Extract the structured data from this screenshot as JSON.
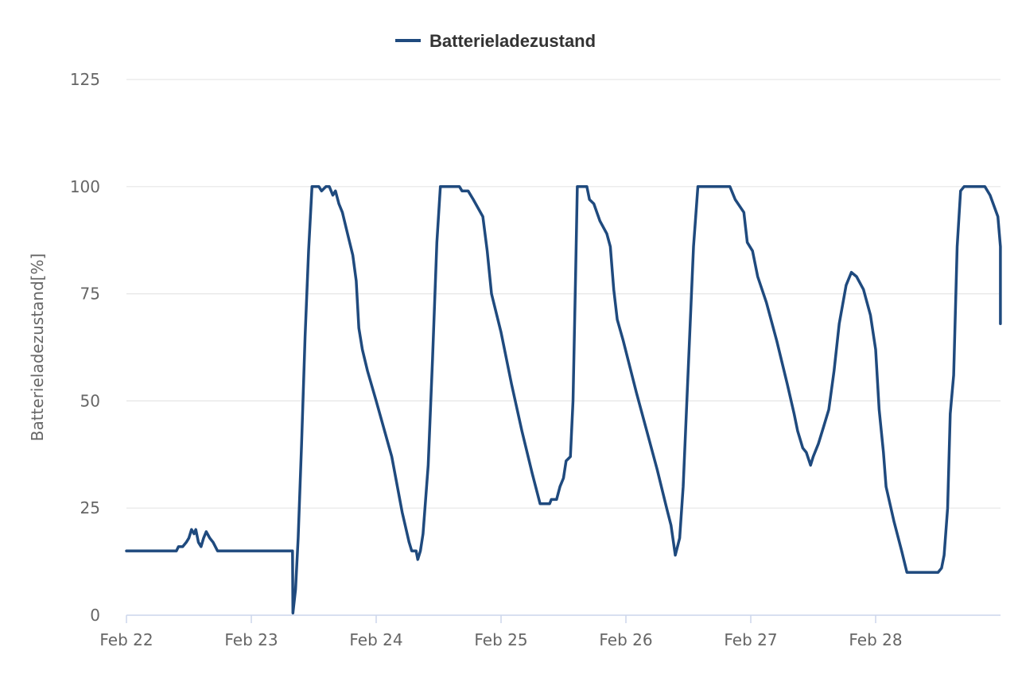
{
  "chart_data": {
    "type": "line",
    "title": "",
    "ylabel": "Batterieladezustand[%]",
    "xlabel": "",
    "ylim": [
      0,
      125
    ],
    "y_ticks": [
      0,
      25,
      50,
      75,
      100,
      125
    ],
    "x_range": [
      "Feb 22",
      "Feb 28 23:59"
    ],
    "x_tick_labels": [
      "Feb 22",
      "Feb 23",
      "Feb 24",
      "Feb 25",
      "Feb 26",
      "Feb 27",
      "Feb 28"
    ],
    "grid": "horizontal",
    "legend": "top-center",
    "colors": {
      "series": "#1f4a7e",
      "grid": "#e6e6e6",
      "axis": "#ccd6eb",
      "text": "#666666"
    },
    "series": [
      {
        "name": "Batterieladezustand",
        "color": "#1f4a7e",
        "points": [
          [
            "Feb 22 00:00",
            15
          ],
          [
            "Feb 22 09:36",
            15
          ],
          [
            "Feb 22 10:00",
            16
          ],
          [
            "Feb 22 10:48",
            16
          ],
          [
            "Feb 22 11:30",
            17
          ],
          [
            "Feb 22 12:00",
            18
          ],
          [
            "Feb 22 12:30",
            20
          ],
          [
            "Feb 22 13:00",
            19
          ],
          [
            "Feb 22 13:20",
            20
          ],
          [
            "Feb 22 13:50",
            17
          ],
          [
            "Feb 22 14:20",
            16
          ],
          [
            "Feb 22 14:50",
            18
          ],
          [
            "Feb 22 15:20",
            19.5
          ],
          [
            "Feb 22 16:00",
            18
          ],
          [
            "Feb 22 16:40",
            17
          ],
          [
            "Feb 22 17:30",
            15
          ],
          [
            "Feb 23 07:55",
            15
          ],
          [
            "Feb 23 08:00",
            0.5
          ],
          [
            "Feb 23 08:30",
            6
          ],
          [
            "Feb 23 09:00",
            18
          ],
          [
            "Feb 23 09:40",
            40
          ],
          [
            "Feb 23 10:20",
            65
          ],
          [
            "Feb 23 11:00",
            85
          ],
          [
            "Feb 23 11:40",
            100
          ],
          [
            "Feb 23 13:00",
            100
          ],
          [
            "Feb 23 13:30",
            99
          ],
          [
            "Feb 23 14:20",
            100
          ],
          [
            "Feb 23 15:00",
            100
          ],
          [
            "Feb 23 15:40",
            98
          ],
          [
            "Feb 23 16:10",
            99
          ],
          [
            "Feb 23 16:50",
            96
          ],
          [
            "Feb 23 17:30",
            94
          ],
          [
            "Feb 23 18:30",
            89
          ],
          [
            "Feb 23 19:30",
            84
          ],
          [
            "Feb 23 20:10",
            78
          ],
          [
            "Feb 23 20:40",
            67
          ],
          [
            "Feb 23 21:20",
            62
          ],
          [
            "Feb 23 22:20",
            57
          ],
          [
            "Feb 24 00:00",
            50
          ],
          [
            "Feb 24 03:00",
            37
          ],
          [
            "Feb 24 05:00",
            24
          ],
          [
            "Feb 24 06:20",
            17
          ],
          [
            "Feb 24 06:50",
            15
          ],
          [
            "Feb 24 07:40",
            15
          ],
          [
            "Feb 24 08:00",
            13
          ],
          [
            "Feb 24 08:30",
            15
          ],
          [
            "Feb 24 09:00",
            19
          ],
          [
            "Feb 24 10:00",
            35
          ],
          [
            "Feb 24 10:50",
            60
          ],
          [
            "Feb 24 11:40",
            87
          ],
          [
            "Feb 24 12:20",
            100
          ],
          [
            "Feb 24 16:00",
            100
          ],
          [
            "Feb 24 16:30",
            99
          ],
          [
            "Feb 24 17:40",
            99
          ],
          [
            "Feb 24 18:40",
            97
          ],
          [
            "Feb 24 20:30",
            93
          ],
          [
            "Feb 24 21:20",
            85
          ],
          [
            "Feb 24 22:10",
            75
          ],
          [
            "Feb 25 00:00",
            66
          ],
          [
            "Feb 25 02:00",
            54
          ],
          [
            "Feb 25 04:00",
            43
          ],
          [
            "Feb 25 06:00",
            33
          ],
          [
            "Feb 25 07:30",
            26
          ],
          [
            "Feb 25 09:20",
            26
          ],
          [
            "Feb 25 09:40",
            27
          ],
          [
            "Feb 25 10:40",
            27
          ],
          [
            "Feb 25 11:20",
            30
          ],
          [
            "Feb 25 12:00",
            32
          ],
          [
            "Feb 25 12:30",
            36
          ],
          [
            "Feb 25 13:20",
            37
          ],
          [
            "Feb 25 13:50",
            50
          ],
          [
            "Feb 25 14:20",
            80
          ],
          [
            "Feb 25 14:40",
            100
          ],
          [
            "Feb 25 16:30",
            100
          ],
          [
            "Feb 25 17:00",
            97
          ],
          [
            "Feb 25 17:50",
            96
          ],
          [
            "Feb 25 19:00",
            92
          ],
          [
            "Feb 25 20:20",
            89
          ],
          [
            "Feb 25 21:00",
            86
          ],
          [
            "Feb 25 21:40",
            76
          ],
          [
            "Feb 25 22:20",
            69
          ],
          [
            "Feb 25 23:30",
            64
          ],
          [
            "Feb 26 02:00",
            52
          ],
          [
            "Feb 26 04:00",
            43
          ],
          [
            "Feb 26 06:00",
            34
          ],
          [
            "Feb 26 07:50",
            25
          ],
          [
            "Feb 26 08:40",
            21
          ],
          [
            "Feb 26 09:30",
            14
          ],
          [
            "Feb 26 10:20",
            18
          ],
          [
            "Feb 26 11:00",
            30
          ],
          [
            "Feb 26 12:00",
            58
          ],
          [
            "Feb 26 13:00",
            86
          ],
          [
            "Feb 26 13:50",
            100
          ],
          [
            "Feb 26 15:00",
            100
          ],
          [
            "Feb 26 20:00",
            100
          ],
          [
            "Feb 26 21:00",
            97
          ],
          [
            "Feb 26 22:40",
            94
          ],
          [
            "Feb 26 23:20",
            87
          ],
          [
            "Feb 27 00:20",
            85
          ],
          [
            "Feb 27 01:20",
            79
          ],
          [
            "Feb 27 03:00",
            73
          ],
          [
            "Feb 27 05:00",
            64
          ],
          [
            "Feb 27 07:00",
            54
          ],
          [
            "Feb 27 08:20",
            47
          ],
          [
            "Feb 27 09:00",
            43
          ],
          [
            "Feb 27 10:00",
            39
          ],
          [
            "Feb 27 10:40",
            38
          ],
          [
            "Feb 27 11:30",
            35
          ],
          [
            "Feb 27 12:00",
            37
          ],
          [
            "Feb 27 13:00",
            40
          ],
          [
            "Feb 27 14:00",
            44
          ],
          [
            "Feb 27 15:00",
            48
          ],
          [
            "Feb 27 16:00",
            57
          ],
          [
            "Feb 27 17:00",
            68
          ],
          [
            "Feb 27 18:20",
            77
          ],
          [
            "Feb 27 19:20",
            80
          ],
          [
            "Feb 27 20:20",
            79
          ],
          [
            "Feb 27 21:40",
            76
          ],
          [
            "Feb 27 23:00",
            70
          ],
          [
            "Feb 28 00:00",
            62
          ],
          [
            "Feb 28 00:40",
            48
          ],
          [
            "Feb 28 01:30",
            38
          ],
          [
            "Feb 28 02:00",
            30
          ],
          [
            "Feb 28 03:30",
            22
          ],
          [
            "Feb 28 05:00",
            15
          ],
          [
            "Feb 28 06:00",
            10
          ],
          [
            "Feb 28 12:00",
            10
          ],
          [
            "Feb 28 12:40",
            11
          ],
          [
            "Feb 28 13:10",
            14
          ],
          [
            "Feb 28 13:50",
            25
          ],
          [
            "Feb 28 14:20",
            47
          ],
          [
            "Feb 28 15:00",
            56
          ],
          [
            "Feb 28 15:40",
            86
          ],
          [
            "Feb 28 16:20",
            99
          ],
          [
            "Feb 28 17:00",
            100
          ],
          [
            "Feb 28 21:00",
            100
          ],
          [
            "Feb 28 22:00",
            98
          ],
          [
            "Feb 28 23:30",
            93
          ],
          [
            "Feb 29 01:30",
            86
          ],
          [
            "Feb 29 03:20",
            78
          ],
          [
            "Feb 29 05:30",
            68
          ]
        ]
      }
    ]
  }
}
